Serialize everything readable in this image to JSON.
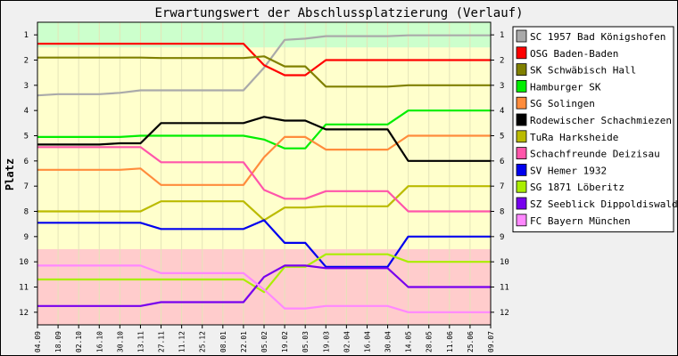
{
  "chart_data": {
    "type": "line",
    "title": "Erwartungswert der Abschlussplatzierung (Verlauf)",
    "xlabel": "",
    "ylabel": "Platz",
    "categories": [
      "04.09",
      "18.09",
      "02.10",
      "16.10",
      "30.10",
      "13.11",
      "27.11",
      "11.12",
      "25.12",
      "08.01",
      "22.01",
      "05.02",
      "19.02",
      "05.03",
      "19.03",
      "02.04",
      "16.04",
      "30.04",
      "14.05",
      "28.05",
      "11.06",
      "25.06",
      "09.07"
    ],
    "ylim": [
      0.5,
      12.5
    ],
    "y_inverted": true,
    "yticks": [
      1,
      2,
      3,
      4,
      5,
      6,
      7,
      8,
      9,
      10,
      11,
      12
    ],
    "legend_position": "right",
    "zones": [
      {
        "from": 0.5,
        "to": 1.5,
        "color": "#ccffcc"
      },
      {
        "from": 1.5,
        "to": 9.5,
        "color": "#ffffcc"
      },
      {
        "from": 9.5,
        "to": 12.5,
        "color": "#ffcccc"
      }
    ],
    "series": [
      {
        "name": "SC 1957 Bad Königshofen",
        "color": "#aaaaaa",
        "values": [
          3.4,
          3.35,
          3.35,
          3.35,
          3.3,
          3.2,
          3.2,
          3.2,
          3.2,
          3.2,
          3.2,
          2.3,
          1.2,
          1.15,
          1.05,
          1.05,
          1.05,
          1.05,
          1.02,
          1.02,
          1.02,
          1.02,
          1.02
        ]
      },
      {
        "name": "OSG Baden-Baden",
        "color": "#ff0000",
        "values": [
          1.35,
          1.35,
          1.35,
          1.35,
          1.35,
          1.35,
          1.35,
          1.35,
          1.35,
          1.35,
          1.35,
          2.2,
          2.6,
          2.6,
          2.0,
          2.0,
          2.0,
          2.0,
          2.0,
          2.0,
          2.0,
          2.0,
          2.0
        ]
      },
      {
        "name": "SK Schwäbisch Hall",
        "color": "#808000",
        "values": [
          1.9,
          1.9,
          1.9,
          1.9,
          1.9,
          1.9,
          1.92,
          1.92,
          1.92,
          1.92,
          1.92,
          1.85,
          2.25,
          2.25,
          3.05,
          3.05,
          3.05,
          3.05,
          3.0,
          3.0,
          3.0,
          3.0,
          3.0
        ]
      },
      {
        "name": "Hamburger SK",
        "color": "#00ee00",
        "values": [
          5.05,
          5.05,
          5.05,
          5.05,
          5.05,
          5.0,
          5.0,
          5.0,
          5.0,
          5.0,
          5.0,
          5.15,
          5.5,
          5.5,
          4.55,
          4.55,
          4.55,
          4.55,
          4.0,
          4.0,
          4.0,
          4.0,
          4.0
        ]
      },
      {
        "name": "SG Solingen",
        "color": "#ff8c3c",
        "values": [
          6.35,
          6.35,
          6.35,
          6.35,
          6.35,
          6.3,
          6.95,
          6.95,
          6.95,
          6.95,
          6.95,
          5.85,
          5.05,
          5.05,
          5.55,
          5.55,
          5.55,
          5.55,
          5.0,
          5.0,
          5.0,
          5.0,
          5.0
        ]
      },
      {
        "name": "Rodewischer Schachmiezen",
        "color": "#000000",
        "values": [
          5.35,
          5.35,
          5.35,
          5.35,
          5.3,
          5.3,
          4.5,
          4.5,
          4.5,
          4.5,
          4.5,
          4.25,
          4.4,
          4.4,
          4.75,
          4.75,
          4.75,
          4.75,
          6.0,
          6.0,
          6.0,
          6.0,
          6.0
        ]
      },
      {
        "name": "TuRa Harksheide",
        "color": "#bbbb00",
        "values": [
          8.0,
          8.0,
          8.0,
          8.0,
          8.0,
          8.0,
          7.6,
          7.6,
          7.6,
          7.6,
          7.6,
          8.35,
          7.85,
          7.85,
          7.8,
          7.8,
          7.8,
          7.8,
          7.0,
          7.0,
          7.0,
          7.0,
          7.0
        ]
      },
      {
        "name": "Schachfreunde Deizisau",
        "color": "#ff55aa",
        "values": [
          5.45,
          5.45,
          5.45,
          5.45,
          5.45,
          5.45,
          6.05,
          6.05,
          6.05,
          6.05,
          6.05,
          7.15,
          7.5,
          7.5,
          7.2,
          7.2,
          7.2,
          7.2,
          8.0,
          8.0,
          8.0,
          8.0,
          8.0
        ]
      },
      {
        "name": "SV Hemer 1932",
        "color": "#0000ee",
        "values": [
          8.45,
          8.45,
          8.45,
          8.45,
          8.45,
          8.45,
          8.7,
          8.7,
          8.7,
          8.7,
          8.7,
          8.35,
          9.25,
          9.25,
          10.2,
          10.2,
          10.2,
          10.2,
          9.0,
          9.0,
          9.0,
          9.0,
          9.0
        ]
      },
      {
        "name": "SG 1871 Löberitz",
        "color": "#aaee00",
        "values": [
          10.7,
          10.7,
          10.7,
          10.7,
          10.7,
          10.7,
          10.7,
          10.7,
          10.7,
          10.7,
          10.7,
          11.2,
          10.2,
          10.2,
          9.7,
          9.7,
          9.7,
          9.7,
          10.0,
          10.0,
          10.0,
          10.0,
          10.0
        ]
      },
      {
        "name": "SZ Seeblick Dippoldiswalde",
        "color": "#7700ee",
        "values": [
          11.75,
          11.75,
          11.75,
          11.75,
          11.75,
          11.75,
          11.6,
          11.6,
          11.6,
          11.6,
          11.6,
          10.6,
          10.15,
          10.15,
          10.25,
          10.25,
          10.25,
          10.25,
          11.0,
          11.0,
          11.0,
          11.0,
          11.0
        ]
      },
      {
        "name": "FC Bayern München",
        "color": "#ff88ff",
        "values": [
          10.15,
          10.15,
          10.15,
          10.15,
          10.15,
          10.15,
          10.45,
          10.45,
          10.45,
          10.45,
          10.45,
          11.1,
          11.85,
          11.85,
          11.75,
          11.75,
          11.75,
          11.75,
          12.0,
          12.0,
          12.0,
          12.0,
          12.0
        ]
      }
    ]
  }
}
